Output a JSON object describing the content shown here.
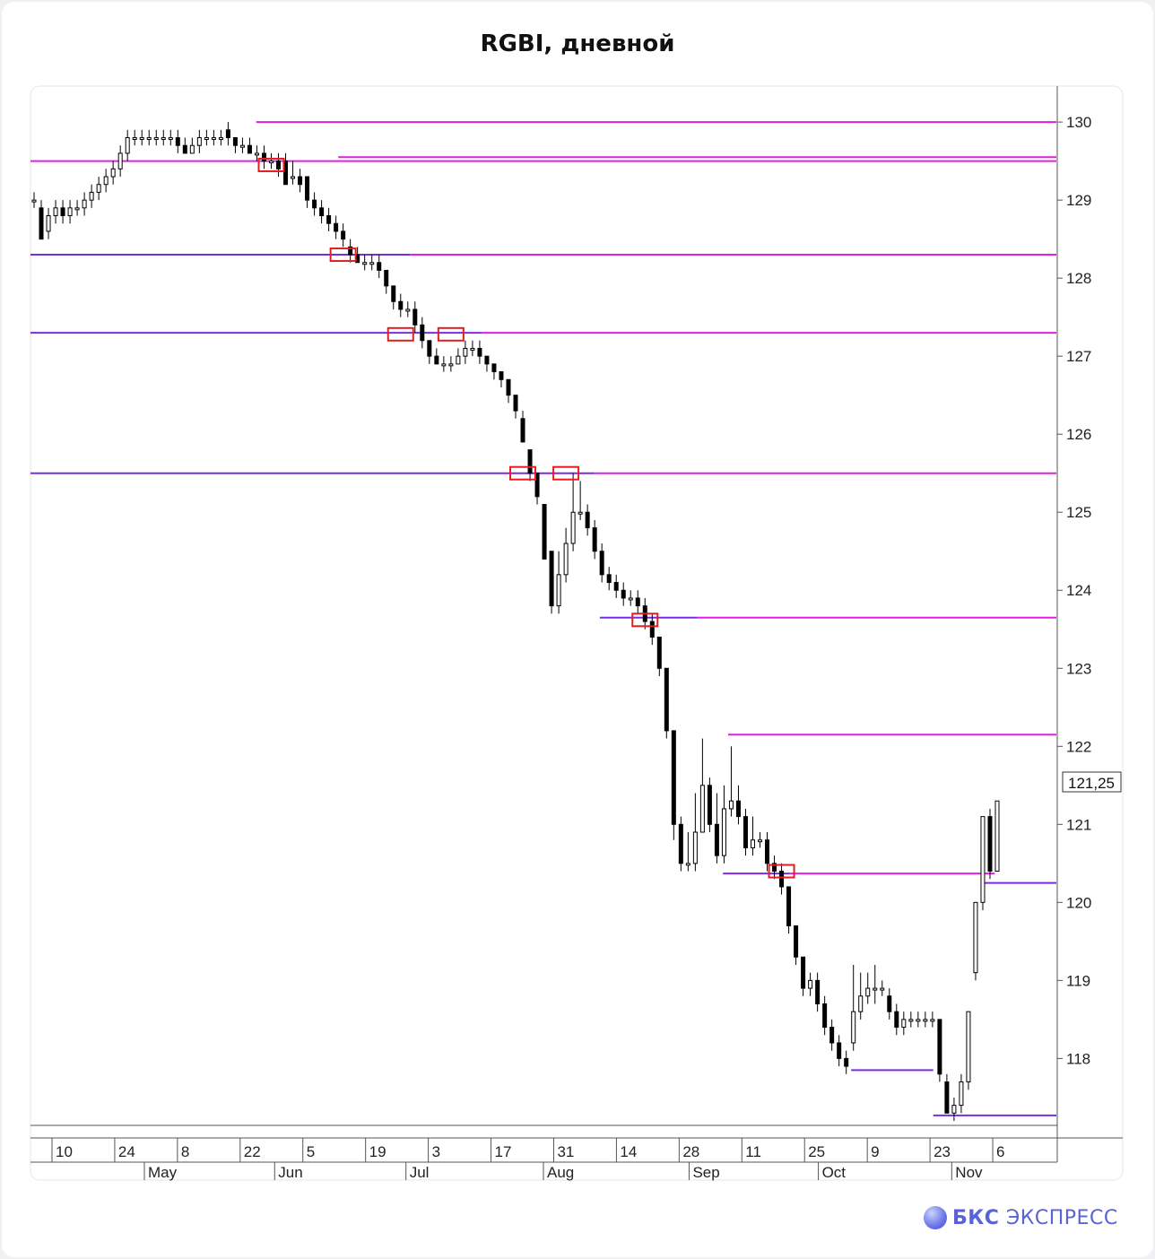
{
  "title": "RGBI, дневной",
  "brand": {
    "name_bold": "БКС",
    "name_rest": "ЭКСПРЕСС",
    "logo": "bks-sphere-icon"
  },
  "chart_data": {
    "type": "candlestick",
    "title": "RGBI, дневной",
    "last_price_label": "121,25",
    "last_price": 121.25,
    "y_ticks": [
      130,
      129,
      128,
      127,
      126,
      125,
      124,
      123,
      122,
      121,
      120,
      119,
      118
    ],
    "ylim": [
      117.2,
      130.3
    ],
    "x_ticks_days": [
      "10",
      "24",
      "8",
      "22",
      "5",
      "19",
      "3",
      "17",
      "31",
      "14",
      "28",
      "11",
      "25",
      "9",
      "23",
      "6"
    ],
    "x_ticks_months": [
      "May",
      "Jun",
      "Jul",
      "Aug",
      "Sep",
      "Oct",
      "Nov"
    ],
    "colors": {
      "magenta": "#e020e0",
      "purple": "#7b2be0",
      "marker": "#e02020",
      "bull": "#ffffff",
      "bear": "#000000"
    },
    "candles": [
      [
        129.0,
        129.0,
        128.9,
        129.1
      ],
      [
        128.9,
        128.5,
        128.5,
        129.0
      ],
      [
        128.6,
        128.8,
        128.5,
        128.9
      ],
      [
        128.8,
        128.9,
        128.7,
        129.0
      ],
      [
        128.9,
        128.8,
        128.7,
        129.0
      ],
      [
        128.8,
        128.9,
        128.7,
        129.0
      ],
      [
        128.9,
        128.9,
        128.8,
        129.0
      ],
      [
        128.9,
        129.0,
        128.8,
        129.1
      ],
      [
        129.0,
        129.1,
        128.9,
        129.2
      ],
      [
        129.1,
        129.2,
        129.0,
        129.3
      ],
      [
        129.2,
        129.3,
        129.1,
        129.4
      ],
      [
        129.3,
        129.4,
        129.2,
        129.5
      ],
      [
        129.4,
        129.6,
        129.3,
        129.7
      ],
      [
        129.6,
        129.8,
        129.5,
        129.9
      ],
      [
        129.8,
        129.8,
        129.7,
        129.9
      ],
      [
        129.8,
        129.8,
        129.7,
        129.9
      ],
      [
        129.8,
        129.8,
        129.7,
        129.9
      ],
      [
        129.8,
        129.8,
        129.7,
        129.9
      ],
      [
        129.8,
        129.8,
        129.7,
        129.9
      ],
      [
        129.8,
        129.8,
        129.7,
        129.9
      ],
      [
        129.8,
        129.7,
        129.6,
        129.9
      ],
      [
        129.7,
        129.6,
        129.6,
        129.8
      ],
      [
        129.6,
        129.7,
        129.6,
        129.8
      ],
      [
        129.7,
        129.8,
        129.6,
        129.9
      ],
      [
        129.8,
        129.8,
        129.7,
        129.9
      ],
      [
        129.8,
        129.8,
        129.7,
        129.9
      ],
      [
        129.8,
        129.8,
        129.7,
        129.9
      ],
      [
        129.9,
        129.8,
        129.7,
        130.0
      ],
      [
        129.8,
        129.7,
        129.6,
        129.8
      ],
      [
        129.7,
        129.7,
        129.6,
        129.8
      ],
      [
        129.7,
        129.6,
        129.6,
        129.8
      ],
      [
        129.6,
        129.6,
        129.5,
        129.7
      ],
      [
        129.6,
        129.5,
        129.4,
        129.7
      ],
      [
        129.5,
        129.5,
        129.4,
        129.6
      ],
      [
        129.5,
        129.4,
        129.3,
        129.6
      ],
      [
        129.5,
        129.2,
        129.2,
        129.6
      ],
      [
        129.3,
        129.3,
        129.2,
        129.5
      ],
      [
        129.3,
        129.2,
        129.1,
        129.4
      ],
      [
        129.3,
        129.0,
        128.9,
        129.3
      ],
      [
        129.0,
        128.9,
        128.8,
        129.1
      ],
      [
        128.9,
        128.8,
        128.7,
        129.0
      ],
      [
        128.8,
        128.7,
        128.6,
        128.9
      ],
      [
        128.7,
        128.6,
        128.5,
        128.8
      ],
      [
        128.6,
        128.5,
        128.4,
        128.7
      ],
      [
        128.4,
        128.3,
        128.2,
        128.5
      ],
      [
        128.3,
        128.2,
        128.2,
        128.4
      ],
      [
        128.2,
        128.2,
        128.1,
        128.3
      ],
      [
        128.2,
        128.2,
        128.1,
        128.3
      ],
      [
        128.2,
        128.1,
        128.0,
        128.3
      ],
      [
        128.1,
        127.9,
        127.8,
        128.1
      ],
      [
        127.9,
        127.7,
        127.6,
        127.9
      ],
      [
        127.7,
        127.6,
        127.5,
        127.8
      ],
      [
        127.6,
        127.6,
        127.5,
        127.7
      ],
      [
        127.6,
        127.4,
        127.3,
        127.7
      ],
      [
        127.4,
        127.2,
        127.1,
        127.5
      ],
      [
        127.2,
        127.0,
        126.9,
        127.2
      ],
      [
        127.0,
        126.9,
        126.9,
        127.1
      ],
      [
        126.9,
        126.9,
        126.8,
        127.0
      ],
      [
        126.9,
        126.9,
        126.8,
        127.0
      ],
      [
        126.9,
        127.0,
        126.9,
        127.1
      ],
      [
        127.0,
        127.1,
        126.9,
        127.2
      ],
      [
        127.1,
        127.1,
        127.0,
        127.2
      ],
      [
        127.1,
        127.0,
        126.9,
        127.2
      ],
      [
        127.0,
        126.9,
        126.8,
        127.0
      ],
      [
        126.9,
        126.8,
        126.7,
        126.9
      ],
      [
        126.8,
        126.7,
        126.6,
        126.8
      ],
      [
        126.7,
        126.5,
        126.4,
        126.7
      ],
      [
        126.5,
        126.3,
        126.2,
        126.5
      ],
      [
        126.2,
        125.9,
        125.9,
        126.3
      ],
      [
        125.8,
        125.5,
        125.4,
        125.8
      ],
      [
        125.5,
        125.2,
        125.1,
        125.5
      ],
      [
        125.1,
        124.4,
        124.4,
        125.1
      ],
      [
        124.5,
        123.8,
        123.7,
        124.5
      ],
      [
        123.8,
        124.2,
        123.7,
        124.5
      ],
      [
        124.2,
        124.6,
        124.1,
        124.8
      ],
      [
        124.6,
        125.0,
        124.5,
        125.5
      ],
      [
        125.0,
        125.0,
        124.9,
        125.4
      ],
      [
        125.0,
        124.8,
        124.7,
        125.1
      ],
      [
        124.8,
        124.5,
        124.4,
        124.9
      ],
      [
        124.5,
        124.2,
        124.1,
        124.6
      ],
      [
        124.2,
        124.1,
        124.0,
        124.3
      ],
      [
        124.1,
        124.0,
        123.9,
        124.2
      ],
      [
        124.0,
        123.9,
        123.8,
        124.1
      ],
      [
        123.9,
        123.9,
        123.8,
        124.0
      ],
      [
        123.9,
        123.8,
        123.7,
        124.0
      ],
      [
        123.8,
        123.6,
        123.5,
        123.9
      ],
      [
        123.6,
        123.4,
        123.3,
        123.7
      ],
      [
        123.4,
        123.0,
        122.9,
        123.4
      ],
      [
        123.0,
        122.2,
        122.1,
        123.0
      ],
      [
        122.2,
        121.0,
        120.8,
        122.2
      ],
      [
        121.0,
        120.5,
        120.4,
        121.1
      ],
      [
        120.5,
        120.5,
        120.4,
        120.9
      ],
      [
        120.5,
        120.9,
        120.4,
        121.4
      ],
      [
        120.9,
        121.5,
        120.9,
        122.1
      ],
      [
        121.5,
        121.0,
        120.9,
        121.6
      ],
      [
        121.0,
        120.6,
        120.5,
        121.4
      ],
      [
        120.6,
        121.2,
        120.5,
        121.5
      ],
      [
        121.2,
        121.3,
        121.1,
        122.0
      ],
      [
        121.3,
        121.1,
        121.0,
        121.5
      ],
      [
        121.1,
        120.7,
        120.6,
        121.2
      ],
      [
        120.7,
        120.8,
        120.6,
        121.1
      ],
      [
        120.8,
        120.8,
        120.7,
        120.9
      ],
      [
        120.8,
        120.5,
        120.4,
        120.9
      ],
      [
        120.5,
        120.4,
        120.3,
        120.6
      ],
      [
        120.4,
        120.2,
        120.1,
        120.5
      ],
      [
        120.2,
        119.7,
        119.6,
        120.2
      ],
      [
        119.7,
        119.3,
        119.2,
        119.7
      ],
      [
        119.3,
        118.9,
        118.8,
        119.3
      ],
      [
        118.9,
        119.0,
        118.8,
        119.1
      ],
      [
        119.0,
        118.7,
        118.6,
        119.1
      ],
      [
        118.7,
        118.4,
        118.3,
        118.8
      ],
      [
        118.4,
        118.2,
        118.1,
        118.5
      ],
      [
        118.2,
        118.0,
        117.9,
        118.3
      ],
      [
        118.0,
        117.9,
        117.8,
        118.1
      ],
      [
        118.2,
        118.6,
        118.1,
        119.2
      ],
      [
        118.6,
        118.8,
        118.5,
        119.1
      ],
      [
        118.8,
        118.9,
        118.7,
        119.1
      ],
      [
        118.9,
        118.9,
        118.7,
        119.2
      ],
      [
        118.9,
        118.9,
        118.8,
        119.0
      ],
      [
        118.8,
        118.6,
        118.5,
        118.9
      ],
      [
        118.6,
        118.4,
        118.3,
        118.7
      ],
      [
        118.4,
        118.5,
        118.3,
        118.6
      ],
      [
        118.5,
        118.5,
        118.4,
        118.6
      ],
      [
        118.5,
        118.5,
        118.4,
        118.6
      ],
      [
        118.5,
        118.5,
        118.4,
        118.6
      ],
      [
        118.5,
        118.5,
        118.4,
        118.6
      ],
      [
        118.5,
        117.8,
        117.7,
        118.5
      ],
      [
        117.7,
        117.3,
        117.3,
        117.8
      ],
      [
        117.3,
        117.4,
        117.2,
        117.5
      ],
      [
        117.4,
        117.7,
        117.3,
        117.8
      ],
      [
        117.7,
        118.6,
        117.6,
        118.6
      ],
      [
        119.1,
        120.0,
        119.0,
        120.0
      ],
      [
        120.0,
        121.1,
        119.9,
        121.1
      ],
      [
        121.1,
        120.4,
        120.3,
        121.2
      ],
      [
        120.4,
        121.3,
        120.4,
        121.3
      ]
    ],
    "levels": [
      {
        "value": 130.0,
        "color": "magenta",
        "from_frac": 0.22
      },
      {
        "value": 129.55,
        "color": "magenta",
        "from_frac": 0.3
      },
      {
        "value": 129.5,
        "color": "magenta",
        "from_frac": 0.0
      },
      {
        "value": 128.3,
        "color": "purple",
        "from_frac": 0.0,
        "to_frac": 0.37
      },
      {
        "value": 128.3,
        "color": "magenta",
        "from_frac": 0.37
      },
      {
        "value": 127.3,
        "color": "purple",
        "from_frac": 0.0,
        "to_frac": 0.44
      },
      {
        "value": 127.3,
        "color": "magenta",
        "from_frac": 0.44
      },
      {
        "value": 125.5,
        "color": "purple",
        "from_frac": 0.0,
        "to_frac": 0.55
      },
      {
        "value": 125.5,
        "color": "magenta",
        "from_frac": 0.55
      },
      {
        "value": 123.65,
        "color": "purple",
        "from_frac": 0.555,
        "to_frac": 0.65
      },
      {
        "value": 123.65,
        "color": "magenta",
        "from_frac": 0.65
      },
      {
        "value": 122.15,
        "color": "magenta",
        "from_frac": 0.68
      },
      {
        "value": 120.37,
        "color": "purple",
        "from_frac": 0.675,
        "to_frac": 0.74
      },
      {
        "value": 120.37,
        "color": "magenta",
        "from_frac": 0.74,
        "to_frac": 0.94
      },
      {
        "value": 120.25,
        "color": "purple",
        "from_frac": 0.93
      },
      {
        "value": 117.85,
        "color": "purple",
        "from_frac": 0.8,
        "to_frac": 0.88
      },
      {
        "value": 117.27,
        "color": "purple",
        "from_frac": 0.88
      }
    ],
    "markers": [
      {
        "candle": 33,
        "value": 129.45
      },
      {
        "candle": 43,
        "value": 128.3
      },
      {
        "candle": 51,
        "value": 127.28
      },
      {
        "candle": 58,
        "value": 127.28
      },
      {
        "candle": 68,
        "value": 125.5
      },
      {
        "candle": 74,
        "value": 125.5
      },
      {
        "candle": 85,
        "value": 123.62
      },
      {
        "candle": 104,
        "value": 120.4
      }
    ]
  }
}
